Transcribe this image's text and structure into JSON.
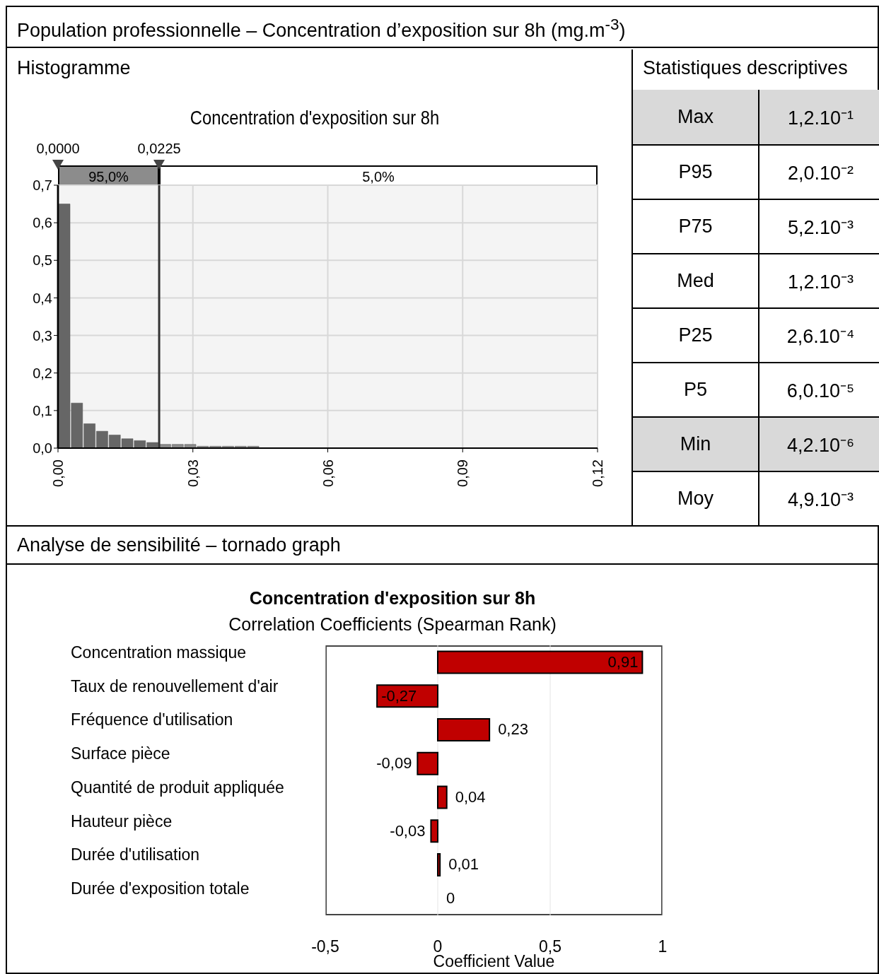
{
  "chart_data": [
    {
      "type": "histogram",
      "title": "Concentration d'exposition sur 8h",
      "annotations": [
        "Population professionnelle – Concentration d’exposition sur 8h (mg.m$^{-3}$)",
        "Histogramme",
        "95,0%",
        "5,0%"
      ],
      "bins": [
        0,
        0.0028,
        0.0056,
        0.0084,
        0.0112,
        0.014,
        0.0168,
        0.0196,
        0.0224,
        0.0252,
        0.028,
        0.0308,
        0.0336,
        0.0364,
        0.0392,
        0.042,
        0.0448
      ],
      "values": [
        0.65,
        0.12,
        0.065,
        0.045,
        0.035,
        0.025,
        0.02,
        0.015,
        0.01,
        0.01,
        0.01,
        0.005,
        0.005,
        0.005,
        0.005,
        0.005
      ],
      "colors": [
        "#666666",
        "#666666",
        "#666666",
        "#666666",
        "#666666",
        "#666666",
        "#666666",
        "#666666",
        "#8a8a8a",
        "#8a8a8a",
        "#8a8a8a",
        "#8a8a8a",
        "#8a8a8a",
        "#8a8a8a",
        "#8a8a8a",
        "#8a8a8a"
      ],
      "xlim": [
        0,
        0.12
      ],
      "xticks": [
        {
          "value": 0,
          "label": "0,00"
        },
        {
          "value": 0.03,
          "label": "0,03"
        },
        {
          "value": 0.06,
          "label": "0,06"
        },
        {
          "value": 0.09,
          "label": "0,09"
        },
        {
          "value": 0.12,
          "label": "0,12"
        }
      ],
      "ylim": [
        0,
        0.7
      ],
      "yticks": [
        {
          "value": 0,
          "label": "0,0"
        },
        {
          "value": 0.1,
          "label": "0,1"
        },
        {
          "value": 0.2,
          "label": "0,2"
        },
        {
          "value": 0.3,
          "label": "0,3"
        },
        {
          "value": 0.4,
          "label": "0,4"
        },
        {
          "value": 0.5,
          "label": "0,5"
        },
        {
          "value": 0.6,
          "label": "0,6"
        },
        {
          "value": 0.7,
          "label": "0,7"
        }
      ],
      "grid": true,
      "ref_lines": [
        {
          "axis": "x",
          "value": 0,
          "label": "0,0000"
        },
        {
          "axis": "x",
          "value": 0.0225,
          "label": "0,0225"
        }
      ]
    },
    {
      "type": "other",
      "title": "Statistiques descriptives",
      "categories": [
        "Max",
        "P95",
        "P75",
        "Med",
        "P25",
        "P5",
        "Min",
        "Moy"
      ],
      "value_labels": [
        "1,2.10⁻¹",
        "2,0.10⁻²",
        "5,2.10⁻³",
        "1,2.10⁻³",
        "2,6.10⁻⁴",
        "6,0.10⁻⁵",
        "4,2.10⁻⁶",
        "4,9.10⁻³"
      ],
      "colors": [
        "#d9d9d9",
        "#ffffff",
        "#ffffff",
        "#ffffff",
        "#ffffff",
        "#ffffff",
        "#d9d9d9",
        "#ffffff"
      ]
    },
    {
      "type": "bar",
      "orientation": "horizontal",
      "annotations": [
        "Analyse de sensibilité – tornado graph"
      ],
      "title": "Concentration d'exposition sur 8h",
      "subtitle": "Correlation Coefficients (Spearman Rank)",
      "xlabel": "Coefficient Value",
      "categories": [
        "Concentration massique",
        "Taux de renouvellement d'air",
        "Fréquence d'utilisation",
        "Surface pièce",
        "Quantité de produit appliquée",
        "Hauteur pièce",
        "Durée d'utilisation",
        "Durée d'exposition totale"
      ],
      "values": [
        0.91,
        -0.27,
        0.23,
        -0.09,
        0.04,
        -0.03,
        0.01,
        0
      ],
      "value_labels": [
        "0,91",
        "-0,27",
        "0,23",
        "-0,09",
        "0,04",
        "-0,03",
        "0,01",
        "0"
      ],
      "color": "#c00000",
      "xlim": [
        -0.5,
        1
      ],
      "xticks": [
        {
          "value": -0.5,
          "label": "-0,5"
        },
        0,
        {
          "value": 0.5,
          "label": "0,5"
        },
        1
      ],
      "grid": "x"
    }
  ]
}
